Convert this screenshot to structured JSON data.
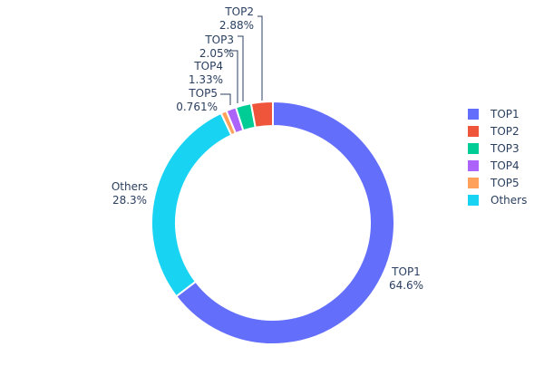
{
  "chart_data": {
    "type": "pie",
    "hole": true,
    "categories": [
      "TOP1",
      "TOP2",
      "TOP3",
      "TOP4",
      "TOP5",
      "Others"
    ],
    "values": [
      64.6,
      2.88,
      2.05,
      1.33,
      0.761,
      28.3
    ],
    "value_labels": [
      "64.6%",
      "2.88%",
      "2.05%",
      "1.33%",
      "0.761%",
      "28.3%"
    ],
    "colors": [
      "#636efa",
      "#ef553b",
      "#00cc96",
      "#ab63fa",
      "#ffa15a",
      "#19d3f3"
    ],
    "draw_order_clockwise": [
      "TOP1",
      "Others",
      "TOP5",
      "TOP4",
      "TOP3",
      "TOP2"
    ],
    "legend": {
      "placement": "right",
      "entries": [
        "TOP1",
        "TOP2",
        "TOP3",
        "TOP4",
        "TOP5",
        "Others"
      ]
    }
  }
}
